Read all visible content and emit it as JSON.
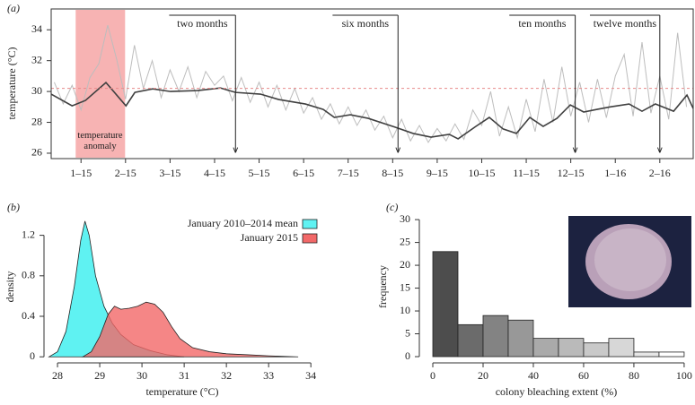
{
  "chart_data": [
    {
      "type": "line",
      "panel_label": "(a)",
      "ylabel": "temperature (°C)",
      "xlim": [
        0.33,
        14.75
      ],
      "ylim": [
        25.65,
        35.35
      ],
      "xticks": [
        {
          "value": 1,
          "label": "1–15"
        },
        {
          "value": 2,
          "label": "2–15"
        },
        {
          "value": 3,
          "label": "3–15"
        },
        {
          "value": 4,
          "label": "4–15"
        },
        {
          "value": 5,
          "label": "5–15"
        },
        {
          "value": 6,
          "label": "6–15"
        },
        {
          "value": 7,
          "label": "7–15"
        },
        {
          "value": 8,
          "label": "8–15"
        },
        {
          "value": 9,
          "label": "9–15"
        },
        {
          "value": 10,
          "label": "10–15"
        },
        {
          "value": 11,
          "label": "11–15"
        },
        {
          "value": 12,
          "label": "12–15"
        },
        {
          "value": 13,
          "label": "1–16"
        },
        {
          "value": 14,
          "label": "2–16"
        }
      ],
      "yticks": [
        26,
        28,
        30,
        32,
        34
      ],
      "anomaly": {
        "label": "temperature anomaly",
        "range": [
          0.88,
          1.99
        ],
        "color": "#f7b3b3"
      },
      "threshold": {
        "value": 30.2,
        "color": "#e88a8a"
      },
      "series": [
        {
          "color": "#bdbdbd",
          "x": [
            0.4,
            0.6,
            0.8,
            1.0,
            1.2,
            1.4,
            1.6,
            1.8,
            2.0,
            2.2,
            2.4,
            2.6,
            2.8,
            3.0,
            3.2,
            3.4,
            3.6,
            3.8,
            4.0,
            4.2,
            4.4,
            4.6,
            4.8,
            5.0,
            5.2,
            5.4,
            5.6,
            5.8,
            6.0,
            6.2,
            6.4,
            6.6,
            6.8,
            7.0,
            7.2,
            7.4,
            7.6,
            7.8,
            8.0,
            8.2,
            8.4,
            8.6,
            8.8,
            9.0,
            9.2,
            9.4,
            9.6,
            9.8,
            10.0,
            10.2,
            10.4,
            10.6,
            10.8,
            11.0,
            11.2,
            11.4,
            11.6,
            11.8,
            12.0,
            12.2,
            12.4,
            12.6,
            12.8,
            13.0,
            13.2,
            13.4,
            13.6,
            13.8,
            14.0,
            14.2,
            14.4,
            14.6
          ],
          "values": [
            30.6,
            29.2,
            30.4,
            28.8,
            30.9,
            31.8,
            34.3,
            32.1,
            29.5,
            33.0,
            30.2,
            32.0,
            29.6,
            31.4,
            30.0,
            31.6,
            29.6,
            31.3,
            30.4,
            31.0,
            29.4,
            30.9,
            29.3,
            30.6,
            29.0,
            30.4,
            28.8,
            30.2,
            28.6,
            29.6,
            28.2,
            29.2,
            27.9,
            29.0,
            27.8,
            28.8,
            27.5,
            28.4,
            27.0,
            28.2,
            26.8,
            27.8,
            26.7,
            27.6,
            26.8,
            27.9,
            26.9,
            28.8,
            27.8,
            30.0,
            27.1,
            29.0,
            27.0,
            29.5,
            27.4,
            30.8,
            28.0,
            31.6,
            28.4,
            30.6,
            28.0,
            30.8,
            28.3,
            31.0,
            32.4,
            28.4,
            33.2,
            28.6,
            31.0,
            28.2,
            33.8,
            29.0
          ]
        },
        {
          "color": "#404040",
          "x": [
            0.33,
            0.8,
            1.1,
            1.56,
            2.01,
            2.21,
            2.61,
            3.01,
            3.62,
            4.13,
            4.47,
            5.03,
            5.44,
            6.04,
            6.44,
            6.69,
            7.05,
            7.45,
            8.06,
            8.46,
            8.86,
            9.27,
            9.47,
            9.87,
            10.17,
            10.48,
            10.78,
            11.08,
            11.38,
            11.69,
            11.99,
            12.29,
            12.59,
            12.9,
            13.31,
            13.6,
            13.9,
            14.31,
            14.61,
            14.75
          ],
          "values": [
            29.83,
            29.07,
            29.42,
            30.58,
            29.07,
            29.94,
            30.17,
            30.0,
            30.06,
            30.23,
            29.94,
            29.83,
            29.48,
            29.19,
            28.84,
            28.32,
            28.49,
            28.26,
            27.68,
            27.28,
            27.04,
            27.22,
            26.93,
            27.74,
            28.32,
            27.57,
            27.28,
            28.32,
            27.74,
            28.26,
            29.13,
            28.67,
            28.84,
            29.01,
            29.19,
            28.72,
            29.19,
            28.72,
            29.77,
            28.9
          ]
        }
      ],
      "annotations": [
        {
          "text": "two months",
          "x_start": 2.98,
          "x": 4.47
        },
        {
          "text": "six months",
          "x_start": 6.65,
          "x": 8.12
        },
        {
          "text": "ten months",
          "x_start": 10.62,
          "x": 12.1
        },
        {
          "text": "twelve months",
          "x_start": 12.43,
          "x": 14.0
        }
      ]
    },
    {
      "type": "area",
      "panel_label": "(b)",
      "xlabel": "temperature (°C)",
      "ylabel": "density",
      "xlim": [
        27.68,
        34.23
      ],
      "ylim": [
        -0.06,
        1.4
      ],
      "xticks": [
        28,
        29,
        30,
        31,
        32,
        33,
        34
      ],
      "yticks": [
        0,
        0.4,
        0.8,
        1.2
      ],
      "legend": "topright",
      "series": [
        {
          "name": "January 2010–2014 mean",
          "color": "#5ff2f2",
          "x": [
            27.8,
            28.0,
            28.2,
            28.4,
            28.55,
            28.65,
            28.75,
            28.9,
            29.1,
            29.3,
            29.5,
            29.8,
            30.2,
            30.6,
            31.0
          ],
          "values": [
            0,
            0.05,
            0.25,
            0.7,
            1.15,
            1.34,
            1.2,
            0.8,
            0.5,
            0.33,
            0.22,
            0.12,
            0.06,
            0.02,
            0
          ]
        },
        {
          "name": "January 2015",
          "color": "#f26868",
          "x": [
            28.6,
            28.8,
            29.0,
            29.2,
            29.35,
            29.5,
            29.7,
            29.9,
            30.1,
            30.3,
            30.5,
            30.7,
            30.9,
            31.2,
            31.6,
            32.0,
            32.5,
            33.0,
            33.7
          ],
          "values": [
            0,
            0.05,
            0.2,
            0.42,
            0.5,
            0.47,
            0.48,
            0.5,
            0.54,
            0.52,
            0.44,
            0.3,
            0.18,
            0.09,
            0.05,
            0.03,
            0.02,
            0.01,
            0
          ]
        }
      ]
    },
    {
      "type": "histogram",
      "panel_label": "(c)",
      "xlabel": "colony bleaching extent (%)",
      "ylabel": "frequency",
      "xlim": [
        -5.36,
        103.6
      ],
      "ylim": [
        -1.37,
        31.0
      ],
      "xticks": [
        0,
        20,
        40,
        60,
        80,
        100
      ],
      "yticks": [
        0,
        5,
        10,
        15,
        20,
        25,
        30
      ],
      "bins": [
        0,
        10,
        20,
        30,
        40,
        50,
        60,
        70,
        80,
        90,
        100
      ],
      "values": [
        23,
        7,
        9,
        8,
        4,
        4,
        3,
        4,
        1,
        1
      ],
      "colors": [
        "#4d4d4d",
        "#6b6b6b",
        "#838383",
        "#989898",
        "#aaaaaa",
        "#bababa",
        "#c9c9c9",
        "#d7d7d7",
        "#e6e6e6",
        "#ffffff"
      ]
    }
  ]
}
